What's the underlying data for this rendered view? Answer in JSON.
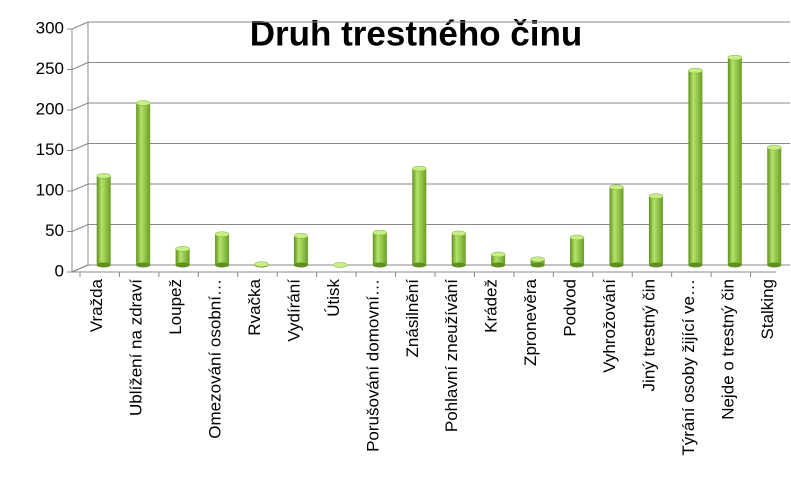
{
  "chart_data": {
    "type": "bar",
    "title": "Druh trestného činu",
    "categories": [
      "Vražda",
      "Ublížení na zdraví",
      "Loupež",
      "Omezování osobní…",
      "Rvačka",
      "Vydírání",
      "Útisk",
      "Porušování domovní…",
      "Znásilnění",
      "Pohlavní zneužívání",
      "Krádež",
      "Zpronevěra",
      "Podvod",
      "Vyhrožování",
      "Jiný trestný čin",
      "Týrání osoby žijící ve…",
      "Nejde o trestný čin",
      "Stalking"
    ],
    "values": [
      110,
      200,
      20,
      38,
      1,
      36,
      0,
      40,
      119,
      39,
      13,
      7,
      34,
      96,
      85,
      240,
      256,
      145
    ],
    "color": "#8dc63f",
    "ylim": [
      0,
      300
    ],
    "yticks": [
      0,
      50,
      100,
      150,
      200,
      250,
      300
    ],
    "grid": true
  }
}
